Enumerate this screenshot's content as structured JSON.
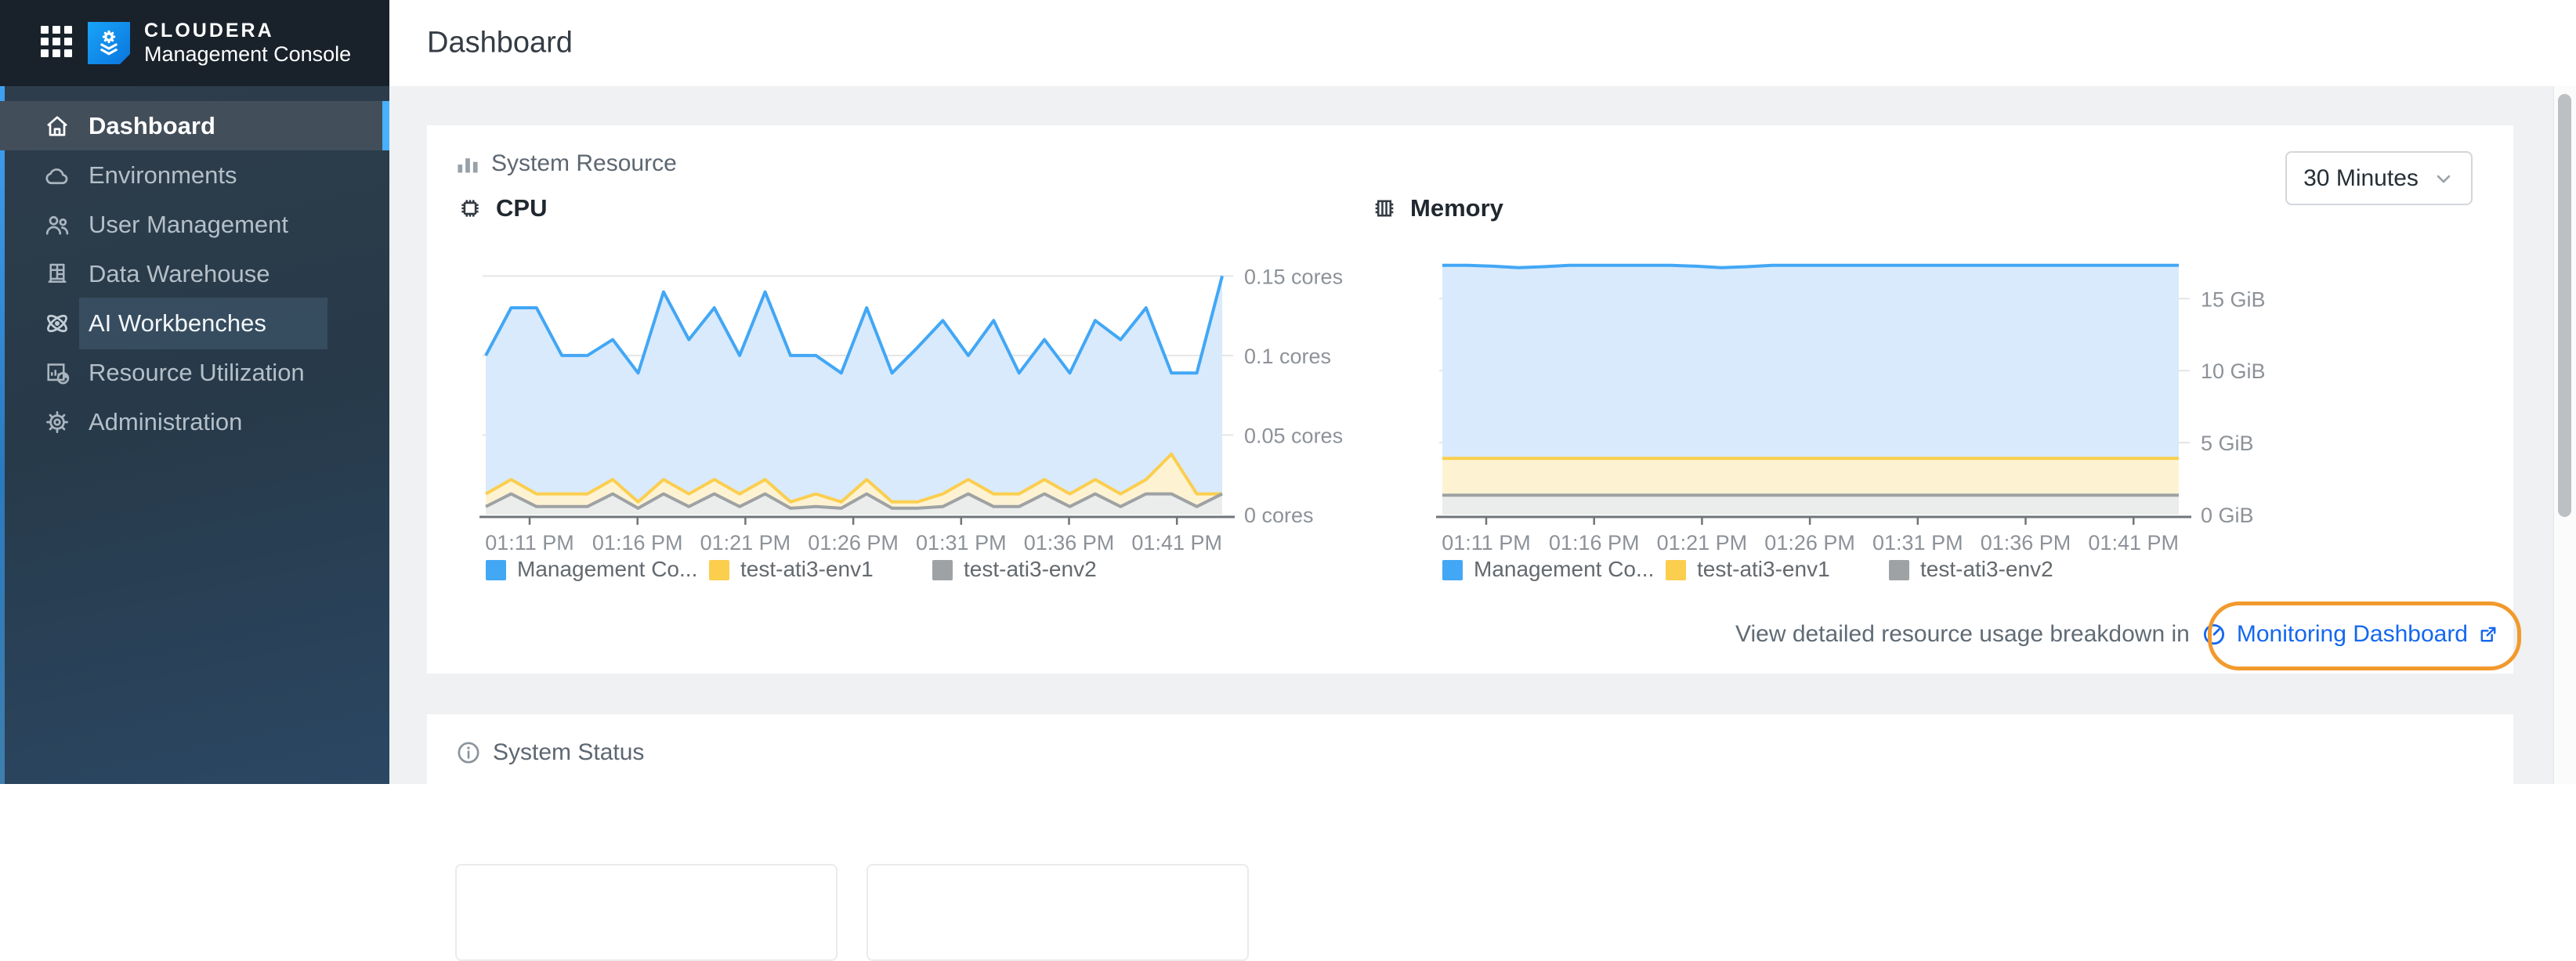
{
  "sidebar": {
    "logo_title": "CLOUDERA",
    "logo_subtitle": "Management Console",
    "items": [
      {
        "label": "Dashboard",
        "state": "active"
      },
      {
        "label": "Environments",
        "state": "normal"
      },
      {
        "label": "User Management",
        "state": "normal"
      },
      {
        "label": "Data Warehouse",
        "state": "normal"
      },
      {
        "label": "AI Workbenches",
        "state": "focused"
      },
      {
        "label": "Resource Utilization",
        "state": "normal"
      },
      {
        "label": "Administration",
        "state": "normal"
      }
    ]
  },
  "header": {
    "title": "Dashboard"
  },
  "system_resource": {
    "section_title": "System Resource",
    "time_range": {
      "value": "30 Minutes"
    },
    "footer": {
      "text": "View detailed resource usage breakdown in",
      "link_label": "Monitoring Dashboard"
    }
  },
  "system_status": {
    "section_title": "System Status"
  },
  "colors": {
    "accent_blue": "#49b0fd",
    "link_blue": "#1567ee",
    "annotation_orange": "#f2992d",
    "series_blue": "#42a7f5",
    "series_yellow": "#fbce4e",
    "series_gray": "#9fa2a4"
  },
  "chart_data": [
    {
      "type": "area",
      "title": "CPU",
      "unit": "cores",
      "grid": true,
      "legend_position": "bottom",
      "y_axis_max": 0.162,
      "y_ticks": [
        {
          "v": 0.15,
          "label": "0.15 cores"
        },
        {
          "v": 0.1,
          "label": "0.1 cores"
        },
        {
          "v": 0.05,
          "label": "0.05 cores"
        },
        {
          "v": 0,
          "label": "0 cores"
        }
      ],
      "x_tick_labels": [
        "01:11 PM",
        "01:16 PM",
        "01:21 PM",
        "01:26 PM",
        "01:31 PM",
        "01:36 PM",
        "01:41 PM"
      ],
      "series": [
        {
          "name": "Management Co...",
          "color": "#42a7f5",
          "fill": "#d9eafc",
          "values": [
            0.1,
            0.13,
            0.13,
            0.1,
            0.1,
            0.11,
            0.089,
            0.14,
            0.11,
            0.13,
            0.1,
            0.14,
            0.1,
            0.1,
            0.089,
            0.13,
            0.089,
            0.105,
            0.122,
            0.1,
            0.122,
            0.089,
            0.11,
            0.089,
            0.122,
            0.11,
            0.13,
            0.089,
            0.089,
            0.15
          ]
        },
        {
          "name": "test-ati3-env1",
          "color": "#fbce4e",
          "fill": "#fdf3d3",
          "values": [
            0.013,
            0.022,
            0.013,
            0.013,
            0.013,
            0.022,
            0.008,
            0.022,
            0.013,
            0.022,
            0.013,
            0.022,
            0.008,
            0.013,
            0.008,
            0.022,
            0.008,
            0.008,
            0.013,
            0.022,
            0.013,
            0.013,
            0.022,
            0.013,
            0.022,
            0.013,
            0.022,
            0.038,
            0.013,
            0.013
          ]
        },
        {
          "name": "test-ati3-env2",
          "color": "#9fa2a4",
          "fill": "#ebecec",
          "values": [
            0.005,
            0.013,
            0.005,
            0.005,
            0.005,
            0.013,
            0.004,
            0.013,
            0.005,
            0.013,
            0.005,
            0.013,
            0.004,
            0.005,
            0.004,
            0.013,
            0.004,
            0.004,
            0.005,
            0.013,
            0.005,
            0.005,
            0.013,
            0.005,
            0.013,
            0.005,
            0.013,
            0.013,
            0.005,
            0.013
          ]
        }
      ]
    },
    {
      "type": "area",
      "title": "Memory",
      "unit": "GiB",
      "grid": true,
      "legend_position": "bottom",
      "y_axis_max": 17.9,
      "y_ticks": [
        {
          "v": 15,
          "label": "15 GiB"
        },
        {
          "v": 10,
          "label": "10 GiB"
        },
        {
          "v": 5,
          "label": "5 GiB"
        },
        {
          "v": 0,
          "label": "0 GiB"
        }
      ],
      "x_tick_labels": [
        "01:11 PM",
        "01:16 PM",
        "01:21 PM",
        "01:26 PM",
        "01:31 PM",
        "01:36 PM",
        "01:41 PM"
      ],
      "series": [
        {
          "name": "Management Co...",
          "color": "#42a7f5",
          "fill": "#d9eafc",
          "values": [
            17.32,
            17.32,
            17.25,
            17.15,
            17.22,
            17.32,
            17.32,
            17.32,
            17.32,
            17.32,
            17.25,
            17.15,
            17.22,
            17.32,
            17.32,
            17.32,
            17.32,
            17.32,
            17.32,
            17.32,
            17.32,
            17.32,
            17.32,
            17.32,
            17.32,
            17.32,
            17.32,
            17.32,
            17.32,
            17.32
          ]
        },
        {
          "name": "test-ati3-env1",
          "color": "#fbce4e",
          "fill": "#fdf3d3",
          "values": [
            3.9,
            3.9,
            3.9,
            3.9,
            3.9,
            3.9,
            3.9,
            3.9,
            3.9,
            3.9,
            3.9,
            3.9,
            3.9,
            3.9,
            3.9,
            3.9,
            3.9,
            3.9,
            3.9,
            3.9,
            3.9,
            3.9,
            3.9,
            3.9,
            3.9,
            3.9,
            3.9,
            3.9,
            3.9,
            3.9
          ]
        },
        {
          "name": "test-ati3-env2",
          "color": "#9fa2a4",
          "fill": "#ebecec",
          "values": [
            1.35,
            1.35,
            1.35,
            1.35,
            1.35,
            1.35,
            1.35,
            1.35,
            1.35,
            1.35,
            1.35,
            1.35,
            1.35,
            1.35,
            1.35,
            1.35,
            1.35,
            1.35,
            1.35,
            1.35,
            1.35,
            1.35,
            1.35,
            1.35,
            1.35,
            1.35,
            1.35,
            1.35,
            1.35,
            1.35
          ]
        }
      ]
    }
  ]
}
